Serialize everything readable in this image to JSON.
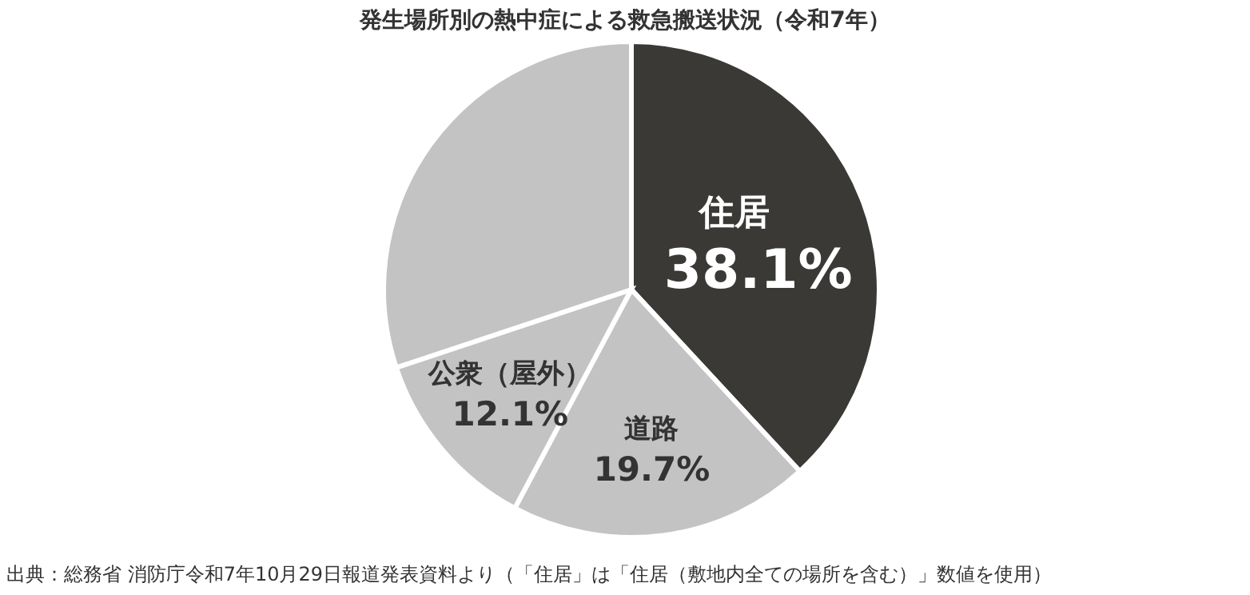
{
  "chart_data": {
    "type": "pie",
    "title": "発生場所別の熱中症による救急搬送状況（令和7年）",
    "categories": [
      "住居",
      "道路",
      "公衆（屋外）",
      null
    ],
    "values": [
      38.1,
      19.7,
      12.1,
      30.1
    ],
    "value_labels": [
      "38.1%",
      "19.7%",
      "12.1%",
      null
    ],
    "colors": [
      "#3a3936",
      "#c3c3c3",
      "#c3c3c3",
      "#c3c3c3"
    ],
    "annotations": [
      "出典：総務省 消防庁令和7年10月29日報道発表資料より（「住居」は「住居（敷地内全ての場所を含む）」数値を使用）"
    ]
  }
}
